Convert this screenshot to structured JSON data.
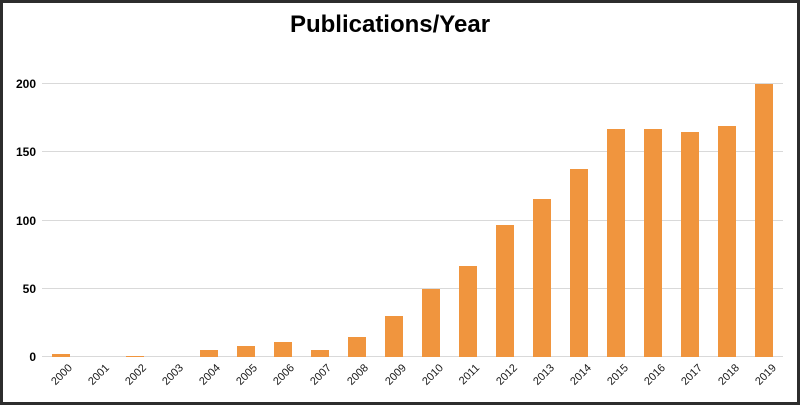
{
  "chart_data": {
    "type": "bar",
    "title": "Publications/Year",
    "categories": [
      "2000",
      "2001",
      "2002",
      "2003",
      "2004",
      "2005",
      "2006",
      "2007",
      "2008",
      "2009",
      "2010",
      "2011",
      "2012",
      "2013",
      "2014",
      "2015",
      "2016",
      "2017",
      "2018",
      "2019"
    ],
    "values": [
      2,
      0,
      1,
      0,
      5,
      8,
      11,
      5,
      15,
      30,
      50,
      67,
      97,
      116,
      138,
      167,
      167,
      165,
      169,
      200
    ],
    "xlabel": "",
    "ylabel": "",
    "ylim": [
      0,
      200
    ],
    "yticks": [
      0,
      50,
      100,
      150,
      200
    ],
    "grid": "horizontal",
    "legend": "none",
    "bar_color": "#F0953E",
    "gridline_color": "#D9D9D9",
    "title_color": "#000000",
    "tick_label_color": "#1A1A1A",
    "frame_color": "#2D2D2D",
    "background_color": "#FFFFFF"
  }
}
